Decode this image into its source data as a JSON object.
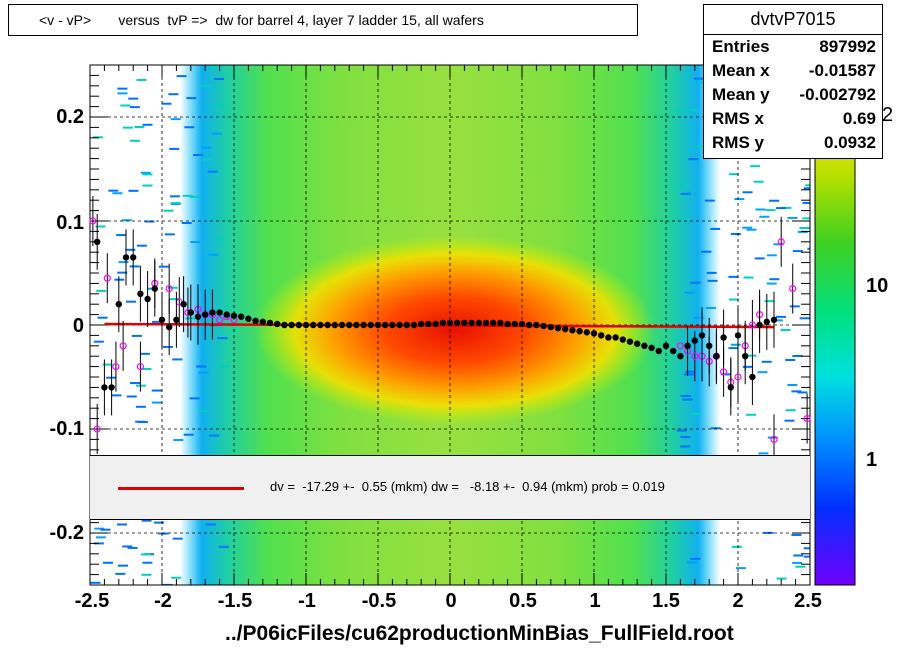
{
  "title": "<v - vP>       versus  tvP =>  dw for barrel 4, layer 7 ladder 15, all wafers",
  "xlabel": "../P06icFiles/cu62productionMinBias_FullField.root",
  "stats": {
    "name": "dvtvP7015",
    "rows": [
      {
        "key": "Entries",
        "value": "897992"
      },
      {
        "key": "Mean x",
        "value": "-0.01587"
      },
      {
        "key": "Mean y",
        "value": "-0.002792"
      },
      {
        "key": "RMS x",
        "value": "0.69"
      },
      {
        "key": "RMS y",
        "value": "0.0932"
      }
    ]
  },
  "fit_legend": "dv =  -17.29 +-  0.55 (mkm) dw =   -8.18 +-  0.94 (mkm) prob = 0.019",
  "colorbar": {
    "ticks": [
      "1",
      "10"
    ],
    "exponent": "2"
  },
  "colors": {
    "fit_line": "#e00000",
    "profile_points": "#000000",
    "open_points": "#ff00ff"
  },
  "chart_data": {
    "type": "heatmap",
    "title": "<v - vP>       versus  tvP =>  dw for barrel 4, layer 7 ladder 15, all wafers",
    "xlabel": "../P06icFiles/cu62productionMinBias_FullField.root",
    "ylabel": "",
    "xlim": [
      -2.5,
      2.5
    ],
    "ylim": [
      -0.25,
      0.25
    ],
    "x_ticks": [
      "-2.5",
      "-2",
      "-1.5",
      "-1",
      "-0.5",
      "0",
      "0.5",
      "1",
      "1.5",
      "2",
      "2.5"
    ],
    "y_ticks": [
      "0.2",
      "0.1",
      "0",
      "-0.1",
      "-0.2"
    ],
    "grid": true,
    "color_scale": "log",
    "fit_line": {
      "x": [
        -2.4,
        2.25
      ],
      "y": [
        0.001,
        -0.002
      ]
    },
    "profile_points": {
      "x": [
        -2.45,
        -2.4,
        -2.35,
        -2.3,
        -2.25,
        -2.2,
        -2.15,
        -2.1,
        -2.05,
        -2.0,
        -1.95,
        -1.9,
        -1.85,
        -1.8,
        -1.75,
        -1.7,
        -1.65,
        -1.6,
        -1.55,
        -1.5,
        -1.45,
        -1.4,
        -1.35,
        -1.3,
        -1.25,
        -1.2,
        -1.15,
        -1.1,
        -1.05,
        -1.0,
        -0.95,
        -0.9,
        -0.85,
        -0.8,
        -0.75,
        -0.7,
        -0.65,
        -0.6,
        -0.55,
        -0.5,
        -0.45,
        -0.4,
        -0.35,
        -0.3,
        -0.25,
        -0.2,
        -0.15,
        -0.1,
        -0.05,
        0.0,
        0.05,
        0.1,
        0.15,
        0.2,
        0.25,
        0.3,
        0.35,
        0.4,
        0.45,
        0.5,
        0.55,
        0.6,
        0.65,
        0.7,
        0.75,
        0.8,
        0.85,
        0.9,
        0.95,
        1.0,
        1.05,
        1.1,
        1.15,
        1.2,
        1.25,
        1.3,
        1.35,
        1.4,
        1.45,
        1.5,
        1.55,
        1.6,
        1.65,
        1.7,
        1.75,
        1.8,
        1.85,
        1.9,
        1.95,
        2.0,
        2.05,
        2.1,
        2.15,
        2.2,
        2.25
      ],
      "y": [
        0.08,
        -0.06,
        -0.06,
        0.02,
        0.065,
        0.065,
        0.03,
        0.025,
        0.035,
        0.005,
        -0.002,
        0.005,
        0.02,
        0.012,
        0.008,
        0.01,
        0.012,
        0.012,
        0.01,
        0.009,
        0.008,
        0.006,
        0.004,
        0.003,
        0.002,
        0.001,
        0.0,
        0.0,
        0.0,
        0.0,
        0.0,
        0.0,
        0.0,
        0.0,
        0.0,
        0.0,
        0.0,
        0.0,
        0.0,
        0.0,
        0.0,
        0.0,
        0.0,
        0.0,
        0.0,
        0.001,
        0.001,
        0.001,
        0.002,
        0.002,
        0.002,
        0.002,
        0.002,
        0.002,
        0.002,
        0.002,
        0.002,
        0.001,
        0.001,
        0.001,
        0.0,
        0.0,
        -0.001,
        -0.002,
        -0.003,
        -0.004,
        -0.005,
        -0.006,
        -0.007,
        -0.008,
        -0.01,
        -0.012,
        -0.012,
        -0.014,
        -0.016,
        -0.018,
        -0.02,
        -0.022,
        -0.025,
        -0.02,
        -0.025,
        -0.03,
        -0.02,
        -0.015,
        -0.01,
        -0.02,
        -0.03,
        -0.012,
        -0.06,
        -0.01,
        -0.03,
        -0.05,
        0.0,
        0.003,
        0.005
      ]
    },
    "open_points": {
      "x": [
        -2.48,
        -2.45,
        -2.38,
        -2.32,
        -2.27,
        -2.15,
        -2.05,
        -1.95,
        -1.88,
        -1.82,
        -1.75,
        -1.7,
        -1.65,
        -1.6,
        -1.55,
        -1.5,
        1.6,
        1.65,
        1.7,
        1.75,
        1.8,
        1.85,
        1.9,
        1.95,
        2.0,
        2.05,
        2.1,
        2.15,
        2.25,
        2.3,
        2.38,
        2.48
      ],
      "y": [
        0.1,
        -0.1,
        0.045,
        -0.04,
        -0.02,
        -0.04,
        0.04,
        0.035,
        0.022,
        0.012,
        0.015,
        0.01,
        0.01,
        0.005,
        0.008,
        0.005,
        -0.02,
        -0.025,
        -0.03,
        -0.03,
        -0.035,
        -0.03,
        -0.045,
        -0.055,
        -0.05,
        -0.02,
        0.0,
        0.01,
        -0.11,
        0.08,
        0.035,
        -0.09
      ]
    }
  }
}
